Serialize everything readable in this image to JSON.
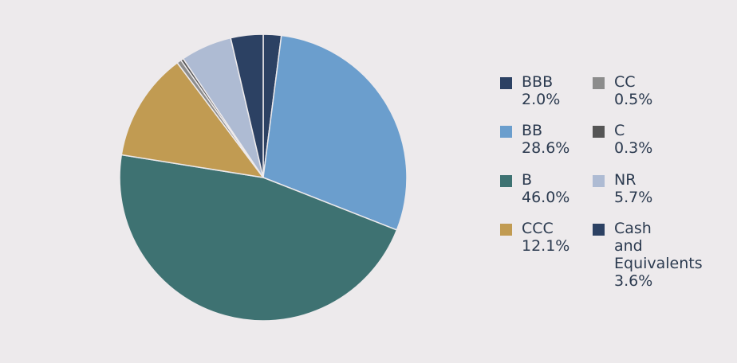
{
  "chart_data": {
    "type": "pie",
    "title": "",
    "slices": [
      {
        "label": "BBB",
        "value": 2.0,
        "display": "2.0%",
        "color": "#2c4163"
      },
      {
        "label": "BB",
        "value": 28.6,
        "display": "28.6%",
        "color": "#6b9ecd"
      },
      {
        "label": "B",
        "value": 46.0,
        "display": "46.0%",
        "color": "#3e7272"
      },
      {
        "label": "CCC",
        "value": 12.1,
        "display": "12.1%",
        "color": "#c19b52"
      },
      {
        "label": "CC",
        "value": 0.5,
        "display": "0.5%",
        "color": "#8c8c8c"
      },
      {
        "label": "C",
        "value": 0.3,
        "display": "0.3%",
        "color": "#555555"
      },
      {
        "label": "NR",
        "value": 5.7,
        "display": "5.7%",
        "color": "#aebbd3"
      },
      {
        "label": "Cash and Equivalents",
        "value": 3.6,
        "display": "3.6%",
        "color": "#2c4163"
      }
    ],
    "legend_position": "right"
  }
}
